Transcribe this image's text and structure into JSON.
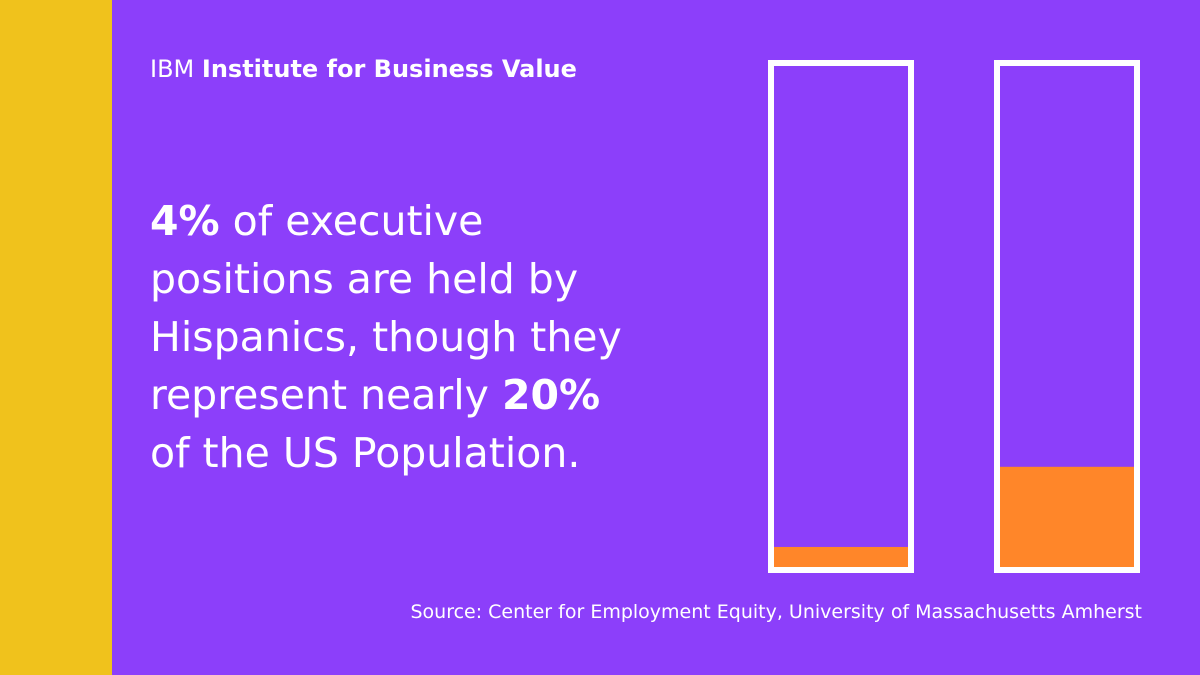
{
  "brand": {
    "prefix": "IBM",
    "name": "Institute for Business Value"
  },
  "headline": {
    "line1_bold": "4%",
    "line1_rest": " of executive",
    "line2": "positions are held by",
    "line3": "Hispanics, though they",
    "line4_start": "represent nearly ",
    "line4_bold": "20%",
    "line5": "of the US Population."
  },
  "source": "Source: Center for Employment Equity, University of Massachusetts Amherst",
  "colors": {
    "background": "#8c3ffa",
    "stripe": "#f0c21c",
    "fill": "#ff8629",
    "outline": "#ffffff"
  },
  "chart_data": {
    "type": "bar",
    "categories": [
      "",
      ""
    ],
    "values": [
      4,
      20
    ],
    "unit": "%",
    "ylim": [
      0,
      100
    ],
    "grid": false,
    "legend": "none"
  }
}
